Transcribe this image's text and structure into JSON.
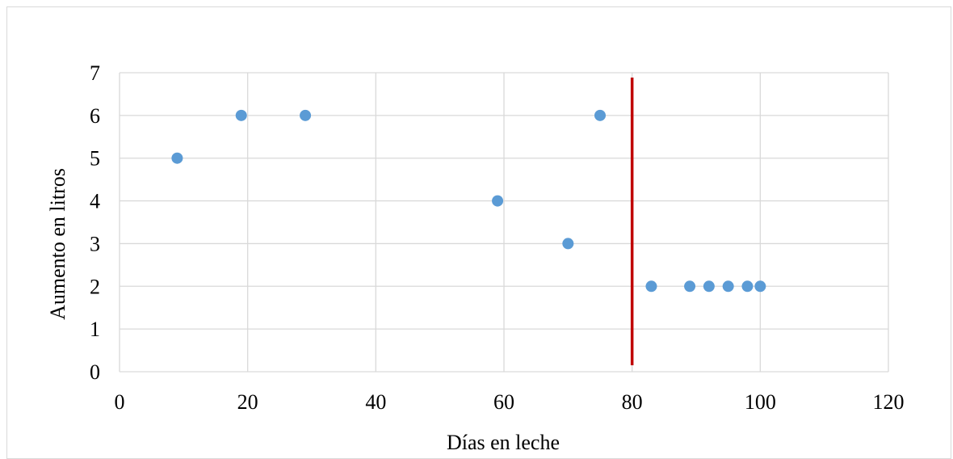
{
  "chart_data": {
    "type": "scatter",
    "title": "",
    "xlabel": "Días en leche",
    "ylabel": "Aumento en litros",
    "xlim": [
      0,
      120
    ],
    "ylim": [
      0,
      7
    ],
    "xticks": [
      0,
      20,
      40,
      60,
      80,
      100,
      120
    ],
    "yticks": [
      0,
      1,
      2,
      3,
      4,
      5,
      6,
      7
    ],
    "grid": true,
    "series": [
      {
        "points": [
          {
            "x": 9,
            "y": 5
          },
          {
            "x": 19,
            "y": 6
          },
          {
            "x": 29,
            "y": 6
          },
          {
            "x": 59,
            "y": 4
          },
          {
            "x": 70,
            "y": 3
          },
          {
            "x": 75,
            "y": 6
          },
          {
            "x": 83,
            "y": 2
          },
          {
            "x": 89,
            "y": 2
          },
          {
            "x": 92,
            "y": 2
          },
          {
            "x": 95,
            "y": 2
          },
          {
            "x": 98,
            "y": 2
          },
          {
            "x": 100,
            "y": 2
          }
        ],
        "color": "#5b9bd5"
      }
    ],
    "reference_line": {
      "x": 80,
      "y_from": 0,
      "y_to": 7,
      "color": "#c00000"
    }
  }
}
